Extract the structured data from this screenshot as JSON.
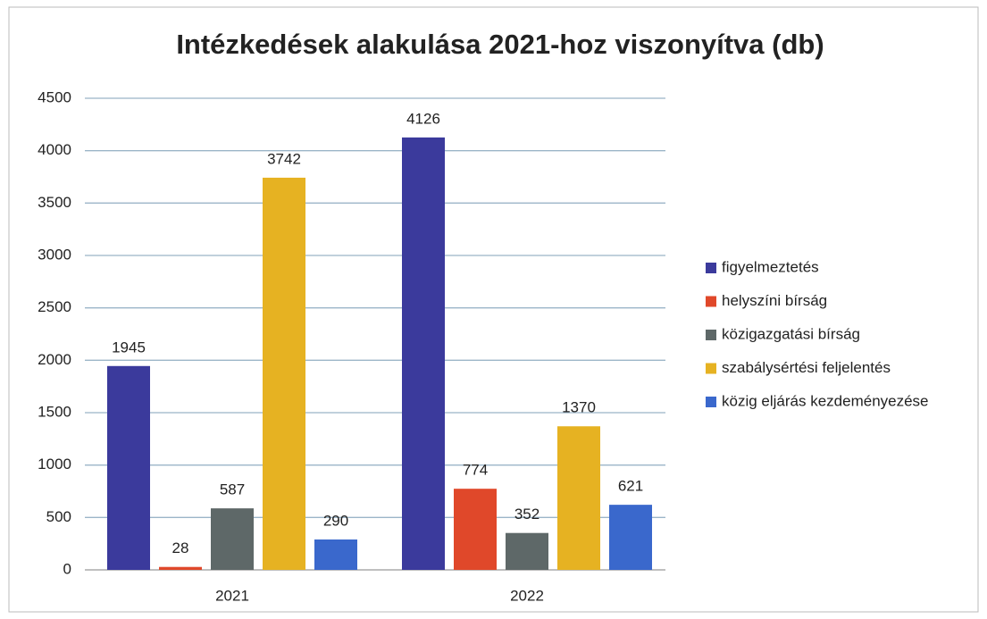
{
  "chart_data": {
    "type": "bar",
    "title": "Intézkedések alakulása 2021-hoz viszonyítva (db)",
    "categories": [
      "2021",
      "2022"
    ],
    "series": [
      {
        "name": "figyelmeztetés",
        "color": "#3b3a9c",
        "values": [
          1945,
          4126
        ]
      },
      {
        "name": "helyszíni bírság",
        "color": "#e0482a",
        "values": [
          28,
          774
        ]
      },
      {
        "name": "közigazgatási bírság",
        "color": "#5e6868",
        "values": [
          587,
          352
        ]
      },
      {
        "name": "szabálysértési feljelentés",
        "color": "#e6b222",
        "values": [
          3742,
          1370
        ]
      },
      {
        "name": "közig eljárás kezdeményezése",
        "color": "#3a68cc",
        "values": [
          290,
          621
        ]
      }
    ],
    "ylim": [
      0,
      4500
    ],
    "yticks": [
      0,
      500,
      1000,
      1500,
      2000,
      2500,
      3000,
      3500,
      4000,
      4500
    ],
    "grid": true,
    "legend": "right"
  }
}
